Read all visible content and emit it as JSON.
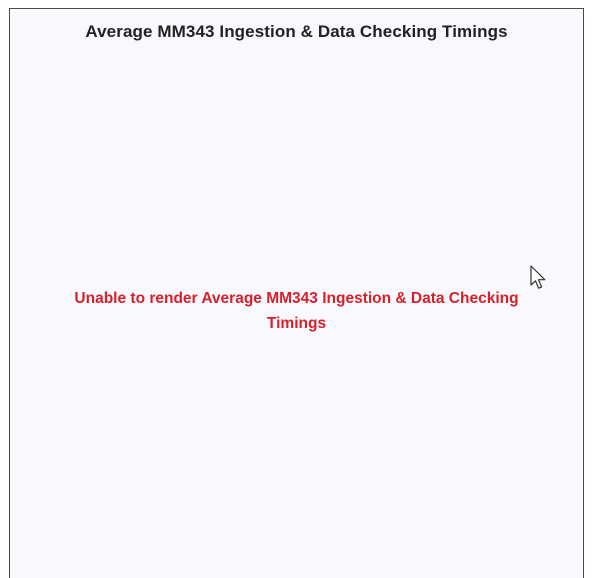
{
  "panel": {
    "title": "Average MM343 Ingestion & Data Checking Timings",
    "error_message": "Unable to render Average MM343 Ingestion & Data Checking Timings"
  },
  "colors": {
    "panel_background": "#f9f9fd",
    "panel_border": "#4a4a4a",
    "title_text": "#222222",
    "error_text": "#d8202a"
  },
  "icons": {
    "cursor": "mouse-pointer-icon"
  }
}
